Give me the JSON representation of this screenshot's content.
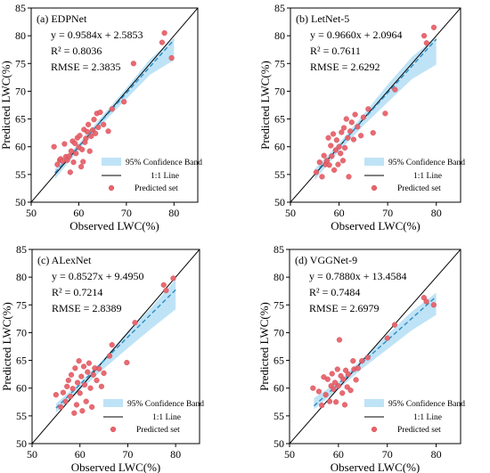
{
  "legend_labels": {
    "band": "95% Confidence Band",
    "line": "1:1 Line",
    "points": "Predicted set"
  },
  "colors": {
    "points": "#e8636b",
    "points_stroke": "#c9404a",
    "band": "#bfe3f6",
    "fit": "#2b8cc4",
    "identity": "#000000"
  },
  "chart_data": [
    {
      "type": "scatter",
      "panel_label": "(a) EDPNet",
      "equation": "y = 0.9584x + 2.5853",
      "r2": "R² = 0.8036",
      "rmse": "RMSE = 2.3835",
      "xlabel": "Observed LWC(%)",
      "ylabel": "Predicted LWC(%)",
      "xlim": [
        50,
        85
      ],
      "ylim": [
        50,
        85
      ],
      "xticks": [
        50,
        60,
        70,
        80
      ],
      "yticks": [
        50,
        55,
        60,
        65,
        70,
        75,
        80,
        85
      ],
      "fit": {
        "slope": 0.9584,
        "intercept": 2.5853,
        "x_range": [
          55,
          80
        ]
      },
      "band": {
        "upper": [
          [
            55,
            56.0
          ],
          [
            60,
            60.6
          ],
          [
            65,
            65.6
          ],
          [
            70,
            70.6
          ],
          [
            75,
            75.8
          ],
          [
            80,
            79.6
          ]
        ],
        "lower": [
          [
            55,
            54.2
          ],
          [
            60,
            59.4
          ],
          [
            65,
            64.2
          ],
          [
            70,
            68.6
          ],
          [
            75,
            73.0
          ],
          [
            80,
            75.6
          ]
        ]
      },
      "points": [
        [
          54.8,
          60.0
        ],
        [
          55.5,
          56.8
        ],
        [
          56.0,
          57.6
        ],
        [
          56.2,
          57.8
        ],
        [
          56.6,
          57.4
        ],
        [
          57.0,
          60.5
        ],
        [
          57.3,
          58.2
        ],
        [
          57.6,
          57.6
        ],
        [
          58.0,
          58.3
        ],
        [
          58.2,
          55.4
        ],
        [
          58.4,
          59.2
        ],
        [
          58.7,
          61.0
        ],
        [
          58.9,
          57.2
        ],
        [
          59.2,
          60.6
        ],
        [
          59.4,
          58.8
        ],
        [
          59.7,
          61.6
        ],
        [
          60.0,
          59.9
        ],
        [
          60.2,
          62.0
        ],
        [
          60.5,
          56.4
        ],
        [
          60.7,
          59.5
        ],
        [
          60.9,
          57.3
        ],
        [
          61.1,
          63.1
        ],
        [
          61.3,
          60.8
        ],
        [
          61.5,
          61.5
        ],
        [
          61.8,
          62.7
        ],
        [
          62.0,
          64.0
        ],
        [
          62.3,
          59.2
        ],
        [
          62.6,
          61.9
        ],
        [
          62.9,
          63.0
        ],
        [
          63.2,
          64.9
        ],
        [
          63.5,
          62.4
        ],
        [
          63.8,
          66.0
        ],
        [
          64.1,
          63.5
        ],
        [
          64.5,
          66.2
        ],
        [
          65.2,
          64.0
        ],
        [
          66.2,
          62.8
        ],
        [
          67.0,
          66.8
        ],
        [
          69.5,
          68.1
        ],
        [
          71.5,
          75.0
        ],
        [
          77.5,
          78.8
        ],
        [
          78.0,
          80.5
        ],
        [
          79.5,
          76.0
        ]
      ]
    },
    {
      "type": "scatter",
      "panel_label": "(b) LetNet-5",
      "equation": "y = 0.9660x + 2.0964",
      "r2": "R² = 0.7611",
      "rmse": "RMSE = 2.6292",
      "xlabel": "Observed LWC(%)",
      "ylabel": "Predicted LWC(%)",
      "xlim": [
        50,
        85
      ],
      "ylim": [
        50,
        85
      ],
      "xticks": [
        50,
        60,
        70,
        80
      ],
      "yticks": [
        50,
        55,
        60,
        65,
        70,
        75,
        80,
        85
      ],
      "fit": {
        "slope": 0.966,
        "intercept": 2.0964,
        "x_range": [
          55,
          80
        ]
      },
      "band": {
        "upper": [
          [
            55,
            56.0
          ],
          [
            60,
            60.6
          ],
          [
            65,
            65.8
          ],
          [
            70,
            71.2
          ],
          [
            75,
            76.2
          ],
          [
            80,
            79.8
          ]
        ],
        "lower": [
          [
            55,
            54.0
          ],
          [
            60,
            59.2
          ],
          [
            65,
            63.8
          ],
          [
            70,
            68.0
          ],
          [
            75,
            72.2
          ],
          [
            80,
            74.8
          ]
        ]
      },
      "points": [
        [
          55.3,
          55.4
        ],
        [
          56.0,
          57.2
        ],
        [
          56.5,
          54.6
        ],
        [
          56.9,
          58.4
        ],
        [
          57.2,
          56.8
        ],
        [
          57.5,
          57.5
        ],
        [
          57.8,
          61.6
        ],
        [
          58.0,
          56.7
        ],
        [
          58.3,
          60.2
        ],
        [
          58.5,
          58.3
        ],
        [
          58.8,
          62.3
        ],
        [
          59.0,
          55.8
        ],
        [
          59.3,
          59.4
        ],
        [
          59.5,
          61.2
        ],
        [
          59.8,
          56.8
        ],
        [
          60.0,
          60.0
        ],
        [
          60.3,
          58.8
        ],
        [
          60.5,
          62.6
        ],
        [
          60.8,
          57.5
        ],
        [
          61.0,
          63.4
        ],
        [
          61.2,
          59.8
        ],
        [
          61.5,
          65.0
        ],
        [
          61.8,
          61.6
        ],
        [
          62.0,
          54.6
        ],
        [
          62.3,
          62.8
        ],
        [
          62.6,
          64.4
        ],
        [
          63.0,
          61.3
        ],
        [
          63.3,
          65.8
        ],
        [
          63.8,
          63.6
        ],
        [
          64.5,
          62.0
        ],
        [
          65.0,
          65.3
        ],
        [
          66.0,
          66.8
        ],
        [
          67.0,
          62.5
        ],
        [
          69.5,
          66.0
        ],
        [
          71.5,
          70.3
        ],
        [
          77.5,
          80.0
        ],
        [
          78.0,
          78.7
        ],
        [
          79.5,
          81.5
        ]
      ]
    },
    {
      "type": "scatter",
      "panel_label": "(c) ALexNet",
      "equation": "y = 0.8527x + 9.4950",
      "r2": "R² = 0.7214",
      "rmse": "RMSE = 2.8389",
      "xlabel": "Observed LWC(%)",
      "ylabel": "Predicted LWC(%)",
      "xlim": [
        50,
        85
      ],
      "ylim": [
        50,
        85
      ],
      "xticks": [
        50,
        60,
        70,
        80
      ],
      "yticks": [
        50,
        55,
        60,
        65,
        70,
        75,
        80,
        85
      ],
      "fit": {
        "slope": 0.8527,
        "intercept": 9.495,
        "x_range": [
          55,
          80
        ]
      },
      "band": {
        "upper": [
          [
            55,
            57.2
          ],
          [
            60,
            61.0
          ],
          [
            65,
            65.3
          ],
          [
            70,
            70.2
          ],
          [
            75,
            74.6
          ],
          [
            80,
            79.6
          ]
        ],
        "lower": [
          [
            55,
            55.6
          ],
          [
            60,
            59.6
          ],
          [
            65,
            63.5
          ],
          [
            70,
            67.2
          ],
          [
            75,
            70.8
          ],
          [
            80,
            74.2
          ]
        ]
      },
      "points": [
        [
          55.0,
          58.8
        ],
        [
          56.0,
          56.6
        ],
        [
          56.5,
          59.2
        ],
        [
          57.0,
          57.6
        ],
        [
          57.3,
          60.3
        ],
        [
          57.6,
          61.4
        ],
        [
          58.0,
          58.5
        ],
        [
          58.2,
          62.4
        ],
        [
          58.5,
          59.9
        ],
        [
          58.8,
          55.5
        ],
        [
          59.0,
          63.6
        ],
        [
          59.3,
          57.0
        ],
        [
          59.5,
          61.0
        ],
        [
          59.8,
          64.9
        ],
        [
          60.0,
          59.1
        ],
        [
          60.3,
          62.1
        ],
        [
          60.5,
          55.9
        ],
        [
          60.8,
          63.9
        ],
        [
          61.0,
          60.6
        ],
        [
          61.3,
          57.6
        ],
        [
          61.6,
          62.9
        ],
        [
          61.9,
          64.5
        ],
        [
          62.2,
          60.0
        ],
        [
          62.5,
          56.6
        ],
        [
          62.8,
          62.4
        ],
        [
          63.1,
          63.6
        ],
        [
          63.5,
          61.4
        ],
        [
          64.0,
          63.5
        ],
        [
          64.5,
          60.3
        ],
        [
          65.0,
          62.7
        ],
        [
          66.2,
          65.8
        ],
        [
          66.7,
          67.8
        ],
        [
          69.8,
          64.6
        ],
        [
          71.5,
          71.8
        ],
        [
          77.5,
          78.6
        ],
        [
          78.0,
          77.6
        ],
        [
          79.5,
          79.8
        ]
      ]
    },
    {
      "type": "scatter",
      "panel_label": "(d) VGGNet-9",
      "equation": "y = 0.7880x + 13.4584",
      "r2": "R² = 0.7484",
      "rmse": "RMSE = 2.6979",
      "xlabel": "Observed LWC(%)",
      "ylabel": "Predicted LWC(%)",
      "xlim": [
        50,
        85
      ],
      "ylim": [
        50,
        85
      ],
      "xticks": [
        50,
        60,
        70,
        80
      ],
      "yticks": [
        50,
        55,
        60,
        65,
        70,
        75,
        80,
        85
      ],
      "fit": {
        "slope": 0.788,
        "intercept": 13.4584,
        "x_range": [
          55,
          80
        ]
      },
      "band": {
        "upper": [
          [
            55,
            58.2
          ],
          [
            60,
            61.2
          ],
          [
            65,
            65.4
          ],
          [
            70,
            69.6
          ],
          [
            75,
            73.8
          ],
          [
            80,
            77.2
          ]
        ],
        "lower": [
          [
            55,
            56.2
          ],
          [
            60,
            59.8
          ],
          [
            65,
            63.6
          ],
          [
            70,
            67.0
          ],
          [
            75,
            70.4
          ],
          [
            80,
            73.2
          ]
        ]
      },
      "points": [
        [
          54.8,
          60.0
        ],
        [
          56.0,
          59.4
        ],
        [
          56.6,
          56.9
        ],
        [
          57.0,
          62.0
        ],
        [
          57.4,
          58.8
        ],
        [
          57.8,
          61.6
        ],
        [
          58.2,
          57.6
        ],
        [
          58.5,
          60.4
        ],
        [
          58.7,
          62.6
        ],
        [
          59.0,
          59.8
        ],
        [
          59.3,
          61.0
        ],
        [
          59.5,
          57.5
        ],
        [
          59.8,
          63.4
        ],
        [
          60.0,
          60.4
        ],
        [
          60.2,
          68.7
        ],
        [
          60.5,
          62.2
        ],
        [
          60.8,
          59.1
        ],
        [
          61.0,
          61.6
        ],
        [
          61.3,
          57.0
        ],
        [
          61.5,
          63.2
        ],
        [
          61.8,
          60.2
        ],
        [
          62.0,
          62.5
        ],
        [
          62.5,
          59.6
        ],
        [
          63.0,
          64.9
        ],
        [
          63.2,
          63.4
        ],
        [
          63.6,
          61.5
        ],
        [
          64.0,
          63.6
        ],
        [
          64.8,
          64.9
        ],
        [
          66.0,
          65.5
        ],
        [
          70.0,
          69.0
        ],
        [
          71.5,
          71.4
        ],
        [
          77.5,
          76.3
        ],
        [
          78.0,
          75.6
        ],
        [
          79.5,
          75.0
        ]
      ]
    }
  ]
}
